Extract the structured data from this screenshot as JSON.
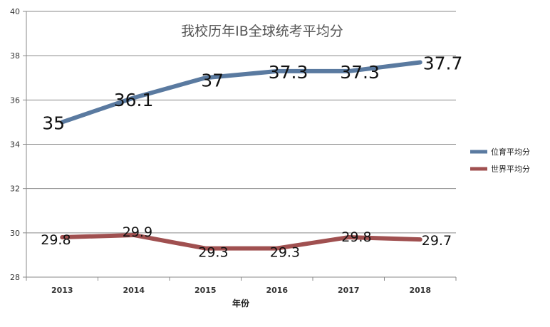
{
  "chart_data": {
    "type": "line",
    "title": "我校历年IB全球统考平均分",
    "xlabel": "年份",
    "ylabel": "",
    "categories": [
      "2013",
      "2014",
      "2015",
      "2016",
      "2017",
      "2018"
    ],
    "ylim": [
      28,
      40
    ],
    "yticks": [
      28,
      30,
      32,
      34,
      36,
      38,
      40
    ],
    "grid": true,
    "legend_position": "right",
    "series": [
      {
        "name": "位育平均分",
        "color": "#5a7aa0",
        "values": [
          35,
          36.1,
          37,
          37.3,
          37.3,
          37.7
        ],
        "labels": [
          "35",
          "36.1",
          "37",
          "37.3",
          "37.3",
          "37.7"
        ]
      },
      {
        "name": "世界平均分",
        "color": "#a05050",
        "values": [
          29.8,
          29.9,
          29.3,
          29.3,
          29.8,
          29.7
        ],
        "labels": [
          "29.8",
          "29.9",
          "29.3",
          "29.3",
          "29.8",
          "29.7"
        ]
      }
    ]
  }
}
